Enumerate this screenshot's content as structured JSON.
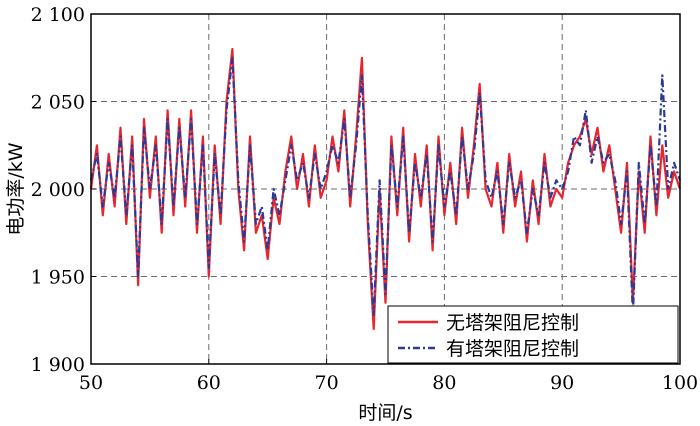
{
  "chart_data": {
    "type": "line",
    "xlabel": "时间/s",
    "ylabel": "电功率/kW",
    "xlim": [
      50,
      100
    ],
    "ylim": [
      1900,
      2100
    ],
    "x_ticks": [
      50,
      60,
      70,
      80,
      90,
      100
    ],
    "y_ticks": [
      1900,
      1950,
      2000,
      2050,
      2100
    ],
    "x_tick_labels": [
      "50",
      "60",
      "70",
      "80",
      "90",
      "100"
    ],
    "y_tick_labels": [
      "1 900",
      "1 950",
      "2 000",
      "2 050",
      "2 100"
    ],
    "grid": true,
    "legend_position": "bottom-right",
    "series": [
      {
        "name": "无塔架阻尼控制",
        "color": "#e8262d",
        "style": "solid",
        "x": [
          50,
          50.5,
          51,
          51.5,
          52,
          52.5,
          53,
          53.5,
          54,
          54.5,
          55,
          55.5,
          56,
          56.5,
          57,
          57.5,
          58,
          58.5,
          59,
          59.5,
          60,
          60.5,
          61,
          61.5,
          62,
          62.5,
          63,
          63.5,
          64,
          64.5,
          65,
          65.5,
          66,
          66.5,
          67,
          67.5,
          68,
          68.5,
          69,
          69.5,
          70,
          70.5,
          71,
          71.5,
          72,
          72.5,
          73,
          73.5,
          74,
          74.5,
          75,
          75.5,
          76,
          76.5,
          77,
          77.5,
          78,
          78.5,
          79,
          79.5,
          80,
          80.5,
          81,
          81.5,
          82,
          82.5,
          83,
          83.5,
          84,
          84.5,
          85,
          85.5,
          86,
          86.5,
          87,
          87.5,
          88,
          88.5,
          89,
          89.5,
          90,
          90.5,
          91,
          91.5,
          92,
          92.5,
          93,
          93.5,
          94,
          94.5,
          95,
          95.5,
          96,
          96.5,
          97,
          97.5,
          98,
          98.5,
          99,
          99.5,
          100
        ],
        "values": [
          2000,
          2025,
          1985,
          2020,
          1990,
          2035,
          1980,
          2030,
          1945,
          2040,
          1995,
          2030,
          1975,
          2045,
          1985,
          2040,
          1990,
          2045,
          1975,
          2030,
          1950,
          2025,
          1980,
          2050,
          2080,
          2000,
          1965,
          2030,
          1975,
          1985,
          1960,
          1995,
          1980,
          2010,
          2030,
          2000,
          2020,
          1990,
          2025,
          1995,
          2005,
          2030,
          2010,
          2045,
          1990,
          2030,
          2075,
          1980,
          1920,
          2000,
          1935,
          2030,
          1985,
          2035,
          1970,
          2020,
          1990,
          2025,
          1965,
          2030,
          1985,
          2015,
          1980,
          2035,
          1995,
          2025,
          2060,
          2000,
          1990,
          2015,
          1975,
          2020,
          1990,
          2010,
          1970,
          2005,
          1980,
          2020,
          1990,
          2000,
          1995,
          2015,
          2025,
          2030,
          2040,
          2020,
          2035,
          2010,
          2025,
          2000,
          1975,
          2015,
          1935,
          2010,
          1975,
          2030,
          1985,
          2025,
          1995,
          2010,
          2000
        ]
      },
      {
        "name": "有塔架阻尼控制",
        "color": "#2b3a98",
        "style": "dashdot",
        "x": [
          50,
          50.5,
          51,
          51.5,
          52,
          52.5,
          53,
          53.5,
          54,
          54.5,
          55,
          55.5,
          56,
          56.5,
          57,
          57.5,
          58,
          58.5,
          59,
          59.5,
          60,
          60.5,
          61,
          61.5,
          62,
          62.5,
          63,
          63.5,
          64,
          64.5,
          65,
          65.5,
          66,
          66.5,
          67,
          67.5,
          68,
          68.5,
          69,
          69.5,
          70,
          70.5,
          71,
          71.5,
          72,
          72.5,
          73,
          73.5,
          74,
          74.5,
          75,
          75.5,
          76,
          76.5,
          77,
          77.5,
          78,
          78.5,
          79,
          79.5,
          80,
          80.5,
          81,
          81.5,
          82,
          82.5,
          83,
          83.5,
          84,
          84.5,
          85,
          85.5,
          86,
          86.5,
          87,
          87.5,
          88,
          88.5,
          89,
          89.5,
          90,
          90.5,
          91,
          91.5,
          92,
          92.5,
          93,
          93.5,
          94,
          94.5,
          95,
          95.5,
          96,
          96.5,
          97,
          97.5,
          98,
          98.5,
          99,
          99.5,
          100
        ],
        "values": [
          2005,
          2020,
          1990,
          2015,
          1995,
          2030,
          1985,
          2025,
          1950,
          2035,
          2000,
          2025,
          1980,
          2040,
          1990,
          2035,
          1995,
          2040,
          1980,
          2025,
          1955,
          2020,
          1985,
          2045,
          2075,
          2005,
          1970,
          2025,
          1980,
          1990,
          1965,
          2000,
          1985,
          2005,
          2025,
          2005,
          2015,
          1995,
          2020,
          2000,
          2010,
          2025,
          2015,
          2040,
          1995,
          2025,
          2065,
          1985,
          1928,
          2005,
          1940,
          2025,
          1990,
          2030,
          1975,
          2015,
          1995,
          2020,
          1970,
          2025,
          1990,
          2010,
          1985,
          2030,
          2000,
          2020,
          2055,
          2005,
          1995,
          2010,
          1980,
          2015,
          1995,
          2005,
          1975,
          2000,
          1985,
          2015,
          1995,
          2005,
          2000,
          2010,
          2030,
          2025,
          2045,
          2015,
          2030,
          2015,
          2020,
          2005,
          1980,
          2010,
          1928,
          2015,
          1980,
          2025,
          1990,
          2065,
          2000,
          2015,
          2005
        ]
      }
    ]
  }
}
